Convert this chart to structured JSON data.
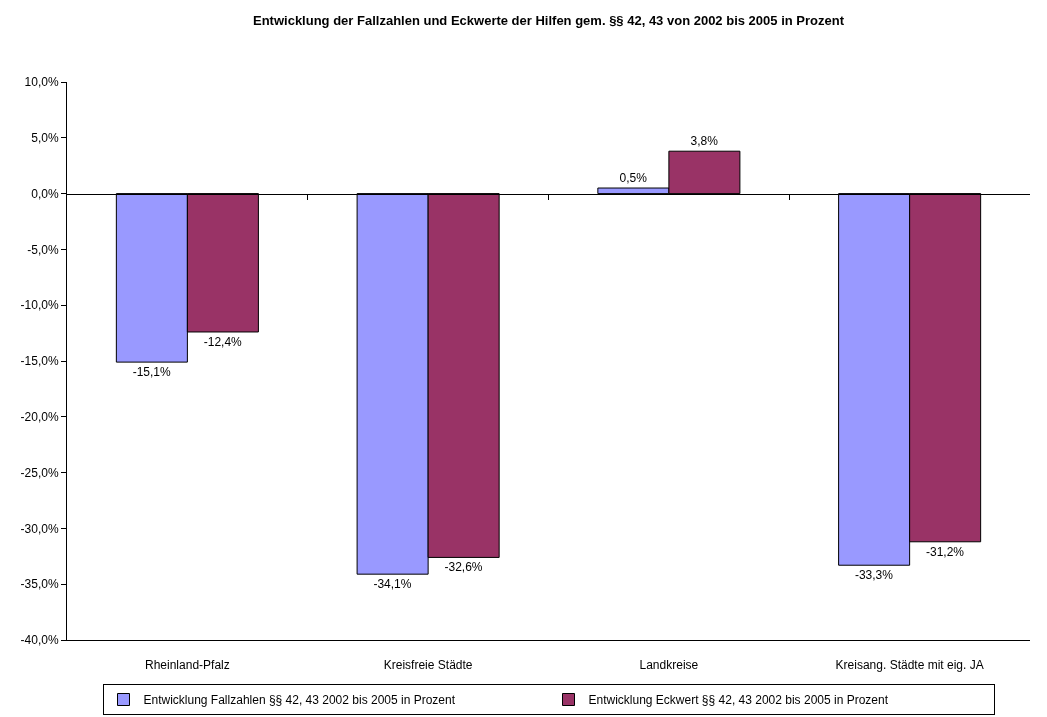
{
  "chart_data": {
    "type": "bar",
    "title": "Entwicklung der Fallzahlen und Eckwerte der Hilfen gem. §§ 42, 43 von 2002 bis 2005 in Prozent",
    "categories": [
      "Rheinland-Pfalz",
      "Kreisfreie Städte",
      "Landkreise",
      "Kreisang. Städte mit eig. JA"
    ],
    "series": [
      {
        "name": "Entwicklung Fallzahlen §§ 42, 43 2002 bis 2005 in Prozent",
        "color": "#9999ff",
        "values": [
          -15.1,
          -34.1,
          0.5,
          -33.3
        ],
        "value_labels": [
          "-15,1%",
          "-34,1%",
          "0,5%",
          "-33,3%"
        ]
      },
      {
        "name": "Entwicklung Eckwert §§ 42, 43 2002 bis 2005 in Prozent",
        "color": "#993366",
        "values": [
          -12.4,
          -32.6,
          3.8,
          -31.2
        ],
        "value_labels": [
          "-12,4%",
          "-32,6%",
          "3,8%",
          "-31,2%"
        ]
      }
    ],
    "ylim": [
      -40,
      10
    ],
    "yticks": [
      {
        "value": -40,
        "label": "-40,0%"
      },
      {
        "value": -35,
        "label": "-35,0%"
      },
      {
        "value": -30,
        "label": "-30,0%"
      },
      {
        "value": -25,
        "label": "-25,0%"
      },
      {
        "value": -20,
        "label": "-20,0%"
      },
      {
        "value": -15,
        "label": "-15,0%"
      },
      {
        "value": -10,
        "label": "-10,0%"
      },
      {
        "value": -5,
        "label": "-5,0%"
      },
      {
        "value": 0,
        "label": "0,0%"
      },
      {
        "value": 5,
        "label": "5,0%"
      },
      {
        "value": 10,
        "label": "10,0%"
      }
    ],
    "legend": "bottom"
  }
}
